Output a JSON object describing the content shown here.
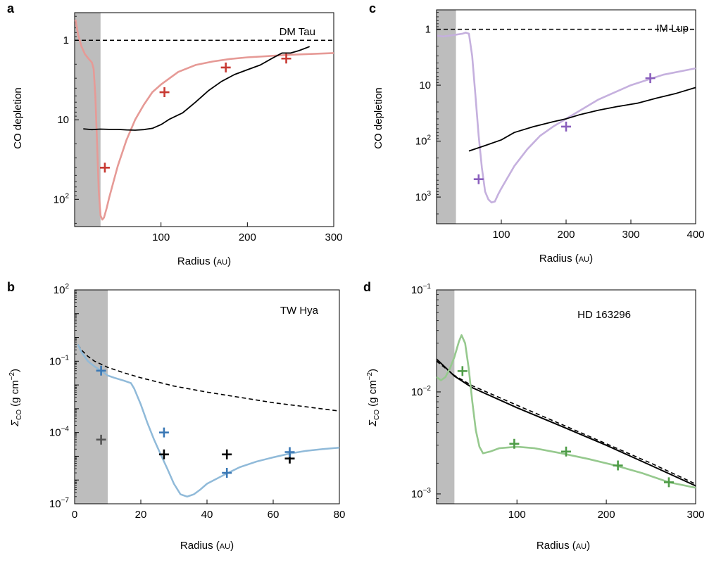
{
  "chart_data": [
    {
      "panel": "a",
      "type": "line",
      "title": "DM Tau",
      "xlabel": "Radius",
      "xunit": "AU",
      "ylabel": "CO depletion",
      "x_ticks": [
        100,
        200,
        300
      ],
      "y_tick_labels": [
        "1",
        "10",
        "10²"
      ],
      "xlim": [
        0,
        300
      ],
      "ylim": [
        0.45,
        220
      ],
      "y_scale": "log",
      "y_inverted": true,
      "shaded_region": [
        0,
        30
      ],
      "colors": {
        "model": "#e69a96",
        "crosses": "#c83a33",
        "black": "#000000",
        "shade": "#bdbdbd"
      },
      "reference_line": {
        "y": 1,
        "style": "dashed"
      },
      "series": [
        {
          "x": [
            1,
            4,
            8,
            12,
            16,
            20,
            22,
            24,
            26,
            28,
            30,
            32,
            34,
            37,
            40,
            45,
            50,
            60,
            70,
            80,
            90,
            100,
            120,
            140,
            160,
            180,
            200,
            250,
            300
          ],
          "y": [
            0.55,
            0.85,
            1.2,
            1.5,
            1.7,
            1.9,
            2.3,
            5,
            20,
            80,
            160,
            180,
            170,
            130,
            95,
            60,
            38,
            18,
            10,
            6.5,
            4.5,
            3.6,
            2.5,
            2.05,
            1.85,
            1.72,
            1.64,
            1.52,
            1.45
          ]
        },
        {
          "x": [
            10,
            20,
            30,
            40,
            50,
            60,
            70,
            80,
            90,
            100,
            110,
            125,
            140,
            155,
            170,
            185,
            200,
            215,
            228,
            240,
            250,
            260,
            272
          ],
          "y": [
            13,
            13.3,
            13.1,
            13.2,
            13.2,
            13.4,
            13.5,
            13.3,
            12.8,
            11.5,
            9.8,
            8.2,
            6.0,
            4.3,
            3.3,
            2.7,
            2.35,
            2.05,
            1.7,
            1.45,
            1.45,
            1.35,
            1.2
          ]
        }
      ],
      "cross_points": [
        {
          "x": 35,
          "y": 40
        },
        {
          "x": 104,
          "y": 4.5
        },
        {
          "x": 175,
          "y": 2.2
        },
        {
          "x": 245,
          "y": 1.7
        }
      ]
    },
    {
      "panel": "c",
      "type": "line",
      "title": "IM Lup",
      "xlabel": "Radius",
      "xunit": "AU",
      "ylabel": "CO depletion",
      "x_ticks": [
        100,
        200,
        300,
        400
      ],
      "y_tick_labels": [
        "1",
        "10",
        "10²",
        "10³"
      ],
      "xlim": [
        0,
        400
      ],
      "ylim": [
        0.45,
        3000
      ],
      "y_scale": "log",
      "y_inverted": true,
      "shaded_region": [
        0,
        30
      ],
      "colors": {
        "model": "#c5b0de",
        "crosses": "#8a5fbd",
        "black": "#000000",
        "shade": "#bdbdbd"
      },
      "reference_line": {
        "y": 1,
        "style": "dashed"
      },
      "series": [
        {
          "x": [
            1,
            10,
            20,
            30,
            40,
            45,
            50,
            55,
            60,
            65,
            70,
            75,
            80,
            85,
            90,
            95,
            100,
            120,
            140,
            160,
            180,
            200,
            250,
            300,
            350,
            400
          ],
          "y": [
            1.3,
            1.35,
            1.3,
            1.25,
            1.2,
            1.15,
            1.2,
            3,
            15,
            80,
            300,
            800,
            1100,
            1250,
            1200,
            900,
            700,
            280,
            140,
            80,
            55,
            40,
            18,
            10,
            6.5,
            5
          ]
        },
        {
          "x": [
            50,
            75,
            100,
            120,
            150,
            180,
            200,
            220,
            250,
            280,
            310,
            340,
            370,
            400
          ],
          "y": [
            150,
            120,
            95,
            70,
            55,
            45,
            40,
            34,
            28,
            24,
            21,
            17,
            14,
            11
          ]
        }
      ],
      "cross_points": [
        {
          "x": 65,
          "y": 480
        },
        {
          "x": 200,
          "y": 55
        },
        {
          "x": 330,
          "y": 7.5
        }
      ]
    },
    {
      "panel": "b",
      "type": "line",
      "title": "TW Hya",
      "xlabel": "Radius",
      "xunit": "AU",
      "ylabel": "Σ",
      "ylabel_sub": "CO",
      "ylabel_unit": "(g cm",
      "ylabel_exp": "−2",
      "ylabel_close": ")",
      "x_ticks": [
        0,
        20,
        40,
        60,
        80
      ],
      "y_ticks": [
        {
          "base": "10",
          "exp": "2"
        },
        {
          "base": "10",
          "exp": "−1"
        },
        {
          "base": "10",
          "exp": "−4"
        },
        {
          "base": "10",
          "exp": "−7"
        }
      ],
      "xlim": [
        0,
        80
      ],
      "ylim": [
        1e-07,
        100
      ],
      "y_scale": "log",
      "shaded_region": [
        0,
        10
      ],
      "colors": {
        "model": "#90bad9",
        "blue_crosses": "#3a78b5",
        "black": "#000000",
        "gray_cross": "#555555",
        "shade": "#bdbdbd"
      },
      "series": [
        {
          "style": "dashed",
          "x": [
            1,
            2,
            4,
            6,
            8,
            10,
            15,
            20,
            30,
            40,
            50,
            60,
            70,
            80
          ],
          "y": [
            0.5,
            0.3,
            0.16,
            0.1,
            0.075,
            0.055,
            0.032,
            0.02,
            0.009,
            0.005,
            0.003,
            0.0018,
            0.0012,
            0.0008
          ]
        },
        {
          "x": [
            1,
            2,
            4,
            6,
            8,
            10,
            12,
            15,
            17,
            18,
            20,
            22,
            24,
            26,
            28,
            30,
            32,
            34,
            36,
            38,
            40,
            45,
            50,
            55,
            60,
            65,
            70,
            75,
            80
          ],
          "y": [
            0.5,
            0.25,
            0.1,
            0.06,
            0.04,
            0.025,
            0.02,
            0.015,
            0.012,
            0.007,
            0.0015,
            0.00025,
            5e-05,
            1.2e-05,
            3e-06,
            7e-07,
            2.5e-07,
            2e-07,
            2.5e-07,
            4e-07,
            7e-07,
            1.6e-06,
            3.5e-06,
            6e-06,
            9e-06,
            1.3e-05,
            1.7e-05,
            2e-05,
            2.3e-05
          ]
        }
      ],
      "cross_points": [
        {
          "x": 8,
          "y": 0.04,
          "group": "blue"
        },
        {
          "x": 8,
          "y": 5e-05,
          "group": "gray"
        },
        {
          "x": 27,
          "y": 0.0001,
          "group": "blue"
        },
        {
          "x": 27,
          "y": 1.2e-05,
          "group": "black"
        },
        {
          "x": 46,
          "y": 1.2e-05,
          "group": "black"
        },
        {
          "x": 46,
          "y": 2e-06,
          "group": "blue"
        },
        {
          "x": 65,
          "y": 8e-06,
          "group": "black"
        },
        {
          "x": 65,
          "y": 1.5e-05,
          "group": "blue"
        }
      ]
    },
    {
      "panel": "d",
      "type": "line",
      "title": "HD 163296",
      "xlabel": "Radius",
      "xunit": "AU",
      "ylabel": "Σ",
      "ylabel_sub": "CO",
      "ylabel_unit": "(g cm",
      "ylabel_exp": "−2",
      "ylabel_close": ")",
      "x_ticks": [
        100,
        200,
        300
      ],
      "y_ticks": [
        {
          "base": "10",
          "exp": "−1"
        },
        {
          "base": "10",
          "exp": "−2"
        },
        {
          "base": "10",
          "exp": "−3"
        }
      ],
      "xlim": [
        10,
        300
      ],
      "ylim": [
        0.0008,
        0.1
      ],
      "y_scale": "log",
      "shaded_region": [
        10,
        30
      ],
      "colors": {
        "model": "#96c98e",
        "crosses": "#4e9c47",
        "black": "#000000",
        "shade": "#bdbdbd"
      },
      "series": [
        {
          "style": "dashed",
          "x": [
            10,
            30,
            50,
            100,
            150,
            200,
            250,
            300
          ],
          "y": [
            0.02,
            0.0145,
            0.0115,
            0.0074,
            0.0048,
            0.0031,
            0.002,
            0.00125
          ]
        },
        {
          "x": [
            10,
            30,
            50,
            100,
            150,
            200,
            250,
            300
          ],
          "y": [
            0.021,
            0.0143,
            0.011,
            0.007,
            0.0046,
            0.003,
            0.0019,
            0.0012
          ]
        },
        {
          "x": [
            10,
            15,
            20,
            25,
            30,
            35,
            38,
            42,
            46,
            50,
            54,
            58,
            62,
            70,
            80,
            100,
            120,
            150,
            180,
            210,
            240,
            270,
            300
          ],
          "y": [
            0.014,
            0.013,
            0.014,
            0.017,
            0.022,
            0.031,
            0.036,
            0.03,
            0.017,
            0.008,
            0.0042,
            0.0029,
            0.0025,
            0.0026,
            0.0028,
            0.0029,
            0.0028,
            0.0025,
            0.0022,
            0.0019,
            0.0016,
            0.0013,
            0.00115
          ]
        }
      ],
      "cross_points": [
        {
          "x": 39,
          "y": 0.016
        },
        {
          "x": 97,
          "y": 0.0031
        },
        {
          "x": 155,
          "y": 0.0026
        },
        {
          "x": 213,
          "y": 0.0019
        },
        {
          "x": 270,
          "y": 0.0013
        }
      ]
    }
  ]
}
